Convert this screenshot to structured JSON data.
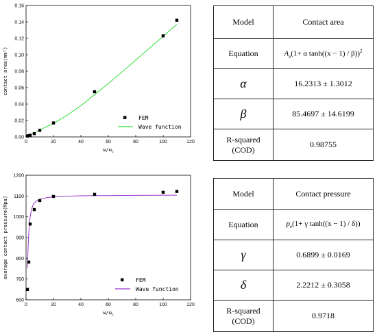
{
  "plot1": {
    "chart_data": {
      "type": "scatter",
      "xlabel": "ω/ω",
      "xlabel_sub": "c",
      "ylabel": "contact area(mm²)",
      "xlim": [
        0,
        120
      ],
      "ylim": [
        0,
        0.16
      ],
      "xticks": [
        0,
        20,
        40,
        60,
        80,
        100,
        120
      ],
      "yticks": [
        0,
        0.02,
        0.04,
        0.06,
        0.08,
        0.1,
        0.12,
        0.14,
        0.16
      ],
      "yticklabels": [
        "0.00",
        "0.02",
        "0.04",
        "0.06",
        "0.08",
        "0.10",
        "0.12",
        "0.14",
        "0.16"
      ],
      "legend_position": "lower-right",
      "series": [
        {
          "name": "FEM",
          "style": "markers",
          "color": "#000000",
          "x": [
            1,
            2,
            3,
            6,
            10,
            20,
            50,
            100,
            110
          ],
          "y": [
            0.001,
            0.0015,
            0.002,
            0.004,
            0.008,
            0.017,
            0.055,
            0.123,
            0.142
          ]
        },
        {
          "name": "Wave function",
          "style": "line",
          "color": "#33dd33",
          "x": [
            1,
            5,
            10,
            15,
            20,
            30,
            40,
            50,
            60,
            70,
            80,
            90,
            100,
            110
          ],
          "y": [
            0.001,
            0.004,
            0.0085,
            0.0125,
            0.0165,
            0.0265,
            0.038,
            0.0515,
            0.065,
            0.079,
            0.0935,
            0.108,
            0.1225,
            0.137
          ]
        }
      ]
    }
  },
  "plot2": {
    "chart_data": {
      "type": "scatter",
      "xlabel": "ω/ω",
      "xlabel_sub": "c",
      "ylabel": "average contact pressure(Mpa)",
      "xlim": [
        0,
        120
      ],
      "ylim": [
        600,
        1200
      ],
      "xticks": [
        0,
        20,
        40,
        60,
        80,
        100,
        120
      ],
      "yticks": [
        600,
        700,
        800,
        900,
        1000,
        1100,
        1200
      ],
      "legend_position": "lower-right",
      "series": [
        {
          "name": "FEM",
          "style": "markers",
          "color": "#000000",
          "x": [
            1,
            2,
            3,
            6,
            10,
            20,
            50,
            100,
            110
          ],
          "y": [
            650,
            782,
            965,
            1035,
            1078,
            1098,
            1108,
            1118,
            1122
          ]
        },
        {
          "name": "Wave function",
          "style": "line",
          "color": "#9933cc",
          "x": [
            1,
            1.5,
            2,
            2.5,
            3,
            4,
            5,
            6,
            8,
            10,
            15,
            20,
            30,
            40,
            60,
            80,
            110
          ],
          "y": [
            755,
            855,
            922,
            968,
            1000,
            1036,
            1055,
            1066,
            1078,
            1084,
            1092,
            1096,
            1099,
            1101,
            1102,
            1103,
            1104
          ]
        }
      ]
    }
  },
  "table1": {
    "header_model": "Model",
    "header_value": "Contact area",
    "equation_label": "Equation",
    "equation_A": "A",
    "equation_A_sub": "e",
    "equation_body": "(1+ α tanh((x − 1) / β))",
    "equation_sup": "2",
    "param1_symbol": "α",
    "param1_value": "16.2313 ± 1.3012",
    "param2_symbol": "β",
    "param2_value": "85.4697 ± 14.6199",
    "r2_label_line1": "R-squared",
    "r2_label_line2": "(COD)",
    "r2_value": "0.98755"
  },
  "table2": {
    "header_model": "Model",
    "header_value": "Contact pressure",
    "equation_label": "Equation",
    "equation_p": "p",
    "equation_p_sub": "e",
    "equation_body": "(1+ γ tanh((x − 1) / δ))",
    "param1_symbol": "γ",
    "param1_value": "0.6899 ± 0.0169",
    "param2_symbol": "δ",
    "param2_value": "2.2212 ± 0.3058",
    "r2_label_line1": "R-squared",
    "r2_label_line2": "(COD)",
    "r2_value": "0.9718"
  }
}
